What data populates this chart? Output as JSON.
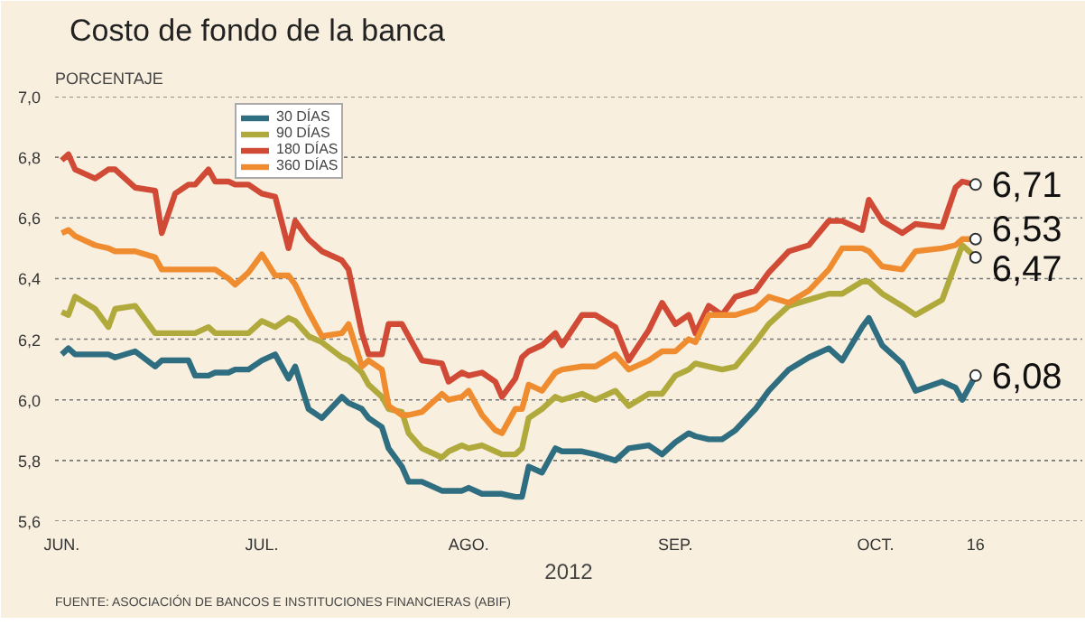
{
  "chart_data": {
    "type": "line",
    "title": "Costo de fondo de la banca",
    "ylabel": "PORCENTAJE",
    "xlabel": "2012",
    "x": [
      "2012-06-01",
      "2012-06-02",
      "2012-06-03",
      "2012-06-06",
      "2012-06-08",
      "2012-06-09",
      "2012-06-12",
      "2012-06-15",
      "2012-06-16",
      "2012-06-18",
      "2012-06-20",
      "2012-06-21",
      "2012-06-23",
      "2012-06-24",
      "2012-06-26",
      "2012-06-27",
      "2012-06-29",
      "2012-07-01",
      "2012-07-03",
      "2012-07-05",
      "2012-07-06",
      "2012-07-08",
      "2012-07-10",
      "2012-07-13",
      "2012-07-14",
      "2012-07-16",
      "2012-07-17",
      "2012-07-19",
      "2012-07-20",
      "2012-07-22",
      "2012-07-23",
      "2012-07-25",
      "2012-07-28",
      "2012-07-29",
      "2012-07-31",
      "2012-08-01",
      "2012-08-03",
      "2012-08-05",
      "2012-08-06",
      "2012-08-08",
      "2012-08-09",
      "2012-08-10",
      "2012-08-12",
      "2012-08-14",
      "2012-08-15",
      "2012-08-18",
      "2012-08-20",
      "2012-08-23",
      "2012-08-25",
      "2012-08-28",
      "2012-08-30",
      "2012-09-01",
      "2012-09-03",
      "2012-09-04",
      "2012-09-06",
      "2012-09-08",
      "2012-09-10",
      "2012-09-13",
      "2012-09-15",
      "2012-09-18",
      "2012-09-21",
      "2012-09-24",
      "2012-09-26",
      "2012-09-29",
      "2012-09-30",
      "2012-10-02",
      "2012-10-05",
      "2012-10-07",
      "2012-10-11",
      "2012-10-13",
      "2012-10-14",
      "2012-10-16"
    ],
    "series": [
      {
        "name": "30 DÍAS",
        "color": "#2e6e80",
        "values": [
          6.15,
          6.17,
          6.15,
          6.15,
          6.15,
          6.14,
          6.16,
          6.11,
          6.13,
          6.13,
          6.13,
          6.08,
          6.08,
          6.09,
          6.09,
          6.1,
          6.1,
          6.13,
          6.15,
          6.07,
          6.11,
          5.97,
          5.94,
          6.01,
          5.99,
          5.97,
          5.94,
          5.91,
          5.84,
          5.78,
          5.73,
          5.73,
          5.7,
          5.7,
          5.7,
          5.71,
          5.69,
          5.69,
          5.69,
          5.68,
          5.68,
          5.78,
          5.76,
          5.84,
          5.83,
          5.83,
          5.82,
          5.8,
          5.84,
          5.85,
          5.82,
          5.86,
          5.89,
          5.88,
          5.87,
          5.87,
          5.9,
          5.97,
          6.03,
          6.1,
          6.14,
          6.17,
          6.13,
          6.24,
          6.27,
          6.18,
          6.12,
          6.03,
          6.06,
          6.04,
          6.0,
          6.08
        ]
      },
      {
        "name": "90 DÍAS",
        "color": "#b0aa3c",
        "values": [
          6.29,
          6.28,
          6.34,
          6.3,
          6.24,
          6.3,
          6.31,
          6.22,
          6.22,
          6.22,
          6.22,
          6.22,
          6.24,
          6.22,
          6.22,
          6.22,
          6.22,
          6.26,
          6.24,
          6.27,
          6.26,
          6.21,
          6.19,
          6.14,
          6.13,
          6.09,
          6.05,
          6.01,
          5.97,
          5.96,
          5.89,
          5.84,
          5.81,
          5.83,
          5.85,
          5.84,
          5.85,
          5.83,
          5.82,
          5.82,
          5.84,
          5.94,
          5.97,
          6.01,
          6.0,
          6.02,
          6.0,
          6.03,
          5.98,
          6.02,
          6.02,
          6.08,
          6.1,
          6.12,
          6.11,
          6.1,
          6.11,
          6.19,
          6.25,
          6.31,
          6.33,
          6.35,
          6.35,
          6.39,
          6.39,
          6.35,
          6.31,
          6.28,
          6.33,
          6.45,
          6.51,
          6.47
        ]
      },
      {
        "name": "180 DÍAS",
        "color": "#d04a35",
        "values": [
          6.79,
          6.81,
          6.76,
          6.73,
          6.76,
          6.76,
          6.7,
          6.69,
          6.55,
          6.68,
          6.71,
          6.71,
          6.76,
          6.72,
          6.72,
          6.71,
          6.71,
          6.68,
          6.67,
          6.5,
          6.59,
          6.53,
          6.49,
          6.46,
          6.43,
          6.22,
          6.15,
          6.15,
          6.25,
          6.25,
          6.21,
          6.13,
          6.12,
          6.06,
          6.09,
          6.08,
          6.09,
          6.06,
          6.01,
          6.07,
          6.14,
          6.16,
          6.18,
          6.22,
          6.18,
          6.28,
          6.28,
          6.24,
          6.13,
          6.23,
          6.32,
          6.25,
          6.28,
          6.22,
          6.31,
          6.28,
          6.34,
          6.36,
          6.42,
          6.49,
          6.51,
          6.59,
          6.59,
          6.56,
          6.66,
          6.59,
          6.55,
          6.58,
          6.57,
          6.7,
          6.72,
          6.71
        ]
      },
      {
        "name": "360 DÍAS",
        "color": "#f08c30",
        "values": [
          6.55,
          6.56,
          6.54,
          6.51,
          6.5,
          6.49,
          6.49,
          6.47,
          6.43,
          6.43,
          6.43,
          6.43,
          6.43,
          6.43,
          6.4,
          6.38,
          6.42,
          6.48,
          6.41,
          6.41,
          6.38,
          6.29,
          6.21,
          6.22,
          6.25,
          6.11,
          6.13,
          6.1,
          5.98,
          5.95,
          5.95,
          5.96,
          6.02,
          6.0,
          6.01,
          6.03,
          5.95,
          5.9,
          5.89,
          5.97,
          5.97,
          6.05,
          6.03,
          6.09,
          6.1,
          6.11,
          6.11,
          6.15,
          6.1,
          6.13,
          6.16,
          6.16,
          6.2,
          6.19,
          6.28,
          6.28,
          6.28,
          6.3,
          6.34,
          6.32,
          6.36,
          6.43,
          6.5,
          6.5,
          6.49,
          6.44,
          6.43,
          6.49,
          6.5,
          6.51,
          6.53,
          6.53
        ]
      }
    ],
    "xlim": [
      "2012-05-31",
      "2012-11-01"
    ],
    "xticks": [
      {
        "value": "2012-06-01",
        "label": "JUN."
      },
      {
        "value": "2012-07-01",
        "label": "JUL."
      },
      {
        "value": "2012-08-01",
        "label": "AGO."
      },
      {
        "value": "2012-09-01",
        "label": "SEP."
      },
      {
        "value": "2012-10-01",
        "label": "OCT."
      },
      {
        "value": "2012-10-16",
        "label": "16"
      }
    ],
    "ylim": [
      5.6,
      7.0
    ],
    "yticks": [
      {
        "value": 5.6,
        "label": "5,6"
      },
      {
        "value": 5.8,
        "label": "5,8"
      },
      {
        "value": 6.0,
        "label": "6,0"
      },
      {
        "value": 6.2,
        "label": "6,2"
      },
      {
        "value": 6.4,
        "label": "6,4"
      },
      {
        "value": 6.6,
        "label": "6,6"
      },
      {
        "value": 6.8,
        "label": "6,8"
      },
      {
        "value": 7.0,
        "label": "7,0"
      }
    ],
    "grid": "y",
    "legend": "top left",
    "line_style": "solid",
    "annotations": [
      {
        "text": "6,71",
        "x": "2012-10-16",
        "y": 6.71
      },
      {
        "text": "6,53",
        "x": "2012-10-16",
        "y": 6.53
      },
      {
        "text": "6,47",
        "x": "2012-10-16",
        "y": 6.47
      },
      {
        "text": "6,08",
        "x": "2012-10-16",
        "y": 6.08
      },
      "FUENTE: ASOCIACIÓN DE BANCOS E INSTITUCIONES FINANCIERAS (ABIF)"
    ]
  }
}
